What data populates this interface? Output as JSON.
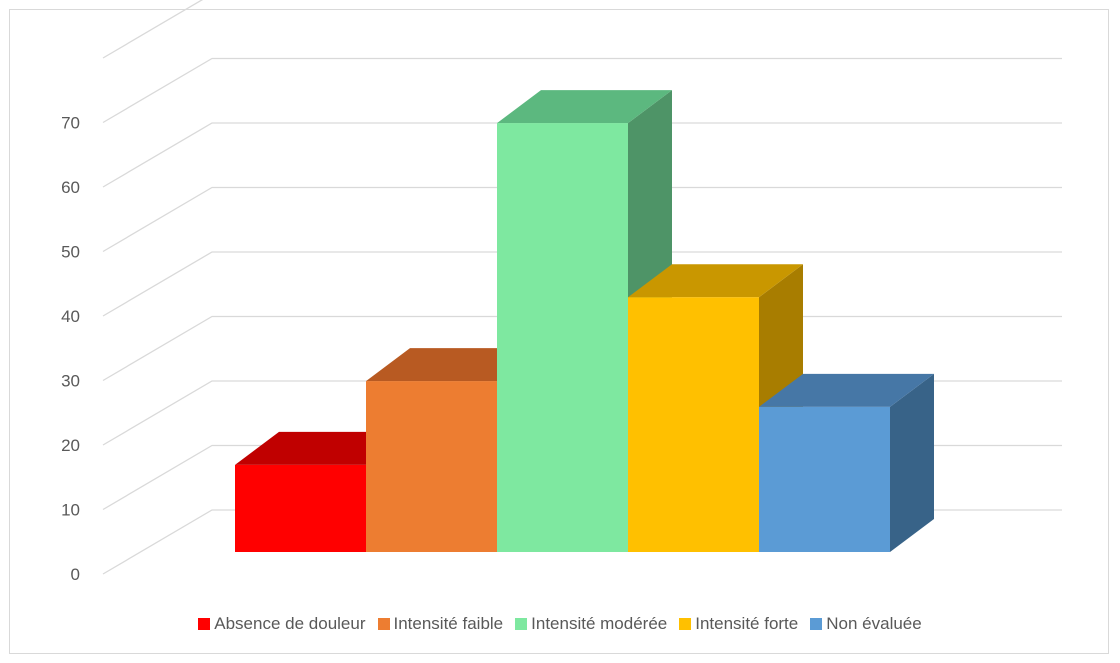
{
  "chart_data": {
    "type": "bar",
    "three_d": true,
    "categories": [
      "Absence de douleur",
      "Intensité faible",
      "Intensité modérée",
      "Intensité forte",
      "Non évaluée"
    ],
    "values": [
      13.5,
      26.5,
      66.5,
      39.5,
      22.5
    ],
    "colors": [
      "#ff0000",
      "#ed7d31",
      "#7ee8a0",
      "#ffc000",
      "#5b9bd5"
    ],
    "top_colors": [
      "#c00000",
      "#b85a22",
      "#5cb87f",
      "#c99700",
      "#4677a6"
    ],
    "side_colors": [
      null,
      null,
      "#4e9467",
      "#a87d00",
      "#386388"
    ],
    "title": "",
    "xlabel": "",
    "ylabel": "",
    "ylim": [
      0,
      70
    ],
    "yticks": [
      0,
      10,
      20,
      30,
      40,
      50,
      60,
      70
    ],
    "grid": true,
    "legend_position": "bottom"
  }
}
